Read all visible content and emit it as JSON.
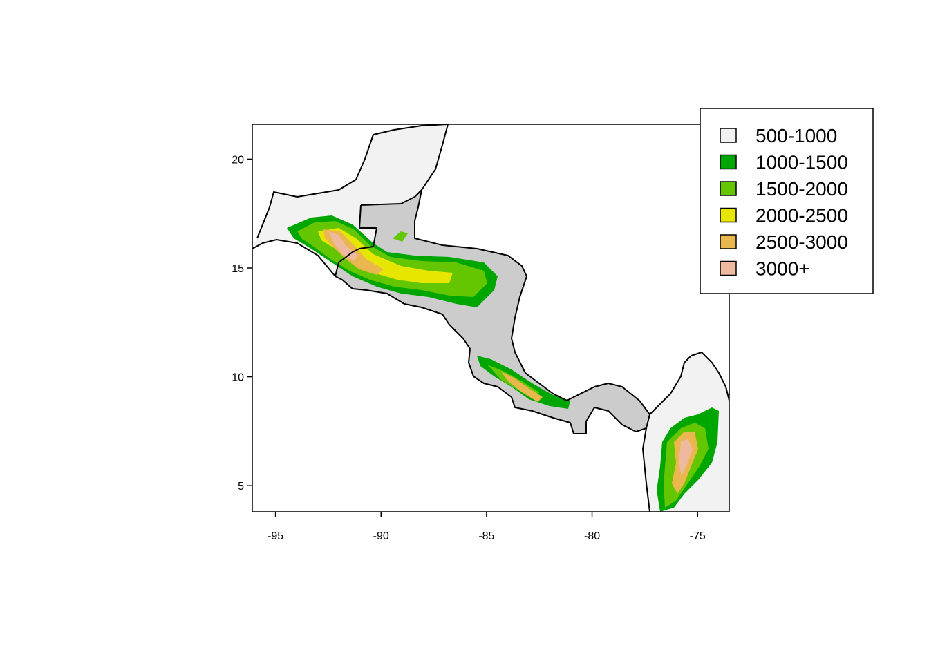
{
  "map": {
    "x_axis": {
      "range": [
        -96.1,
        -73.5
      ],
      "ticks": [
        -95,
        -90,
        -85,
        -80,
        -75
      ],
      "labels": [
        "-95",
        "-90",
        "-85",
        "-80",
        "-75"
      ]
    },
    "y_axis": {
      "range": [
        3.8,
        21.6
      ],
      "ticks": [
        5,
        10,
        15,
        20
      ],
      "labels": [
        "5",
        "10",
        "15",
        "20"
      ]
    },
    "land_color": "#cccccc",
    "lowland_color": "#f2f2f2",
    "border_color": "#000000"
  },
  "legend": {
    "items": [
      {
        "label": "500-1000",
        "color": "#f2f2f2"
      },
      {
        "label": "1000-1500",
        "color": "#00a600"
      },
      {
        "label": "1500-2000",
        "color": "#63c600"
      },
      {
        "label": "2000-2500",
        "color": "#e6e600"
      },
      {
        "label": "2500-3000",
        "color": "#eab64e"
      },
      {
        "label": "3000+",
        "color": "#eeb99f"
      }
    ]
  }
}
